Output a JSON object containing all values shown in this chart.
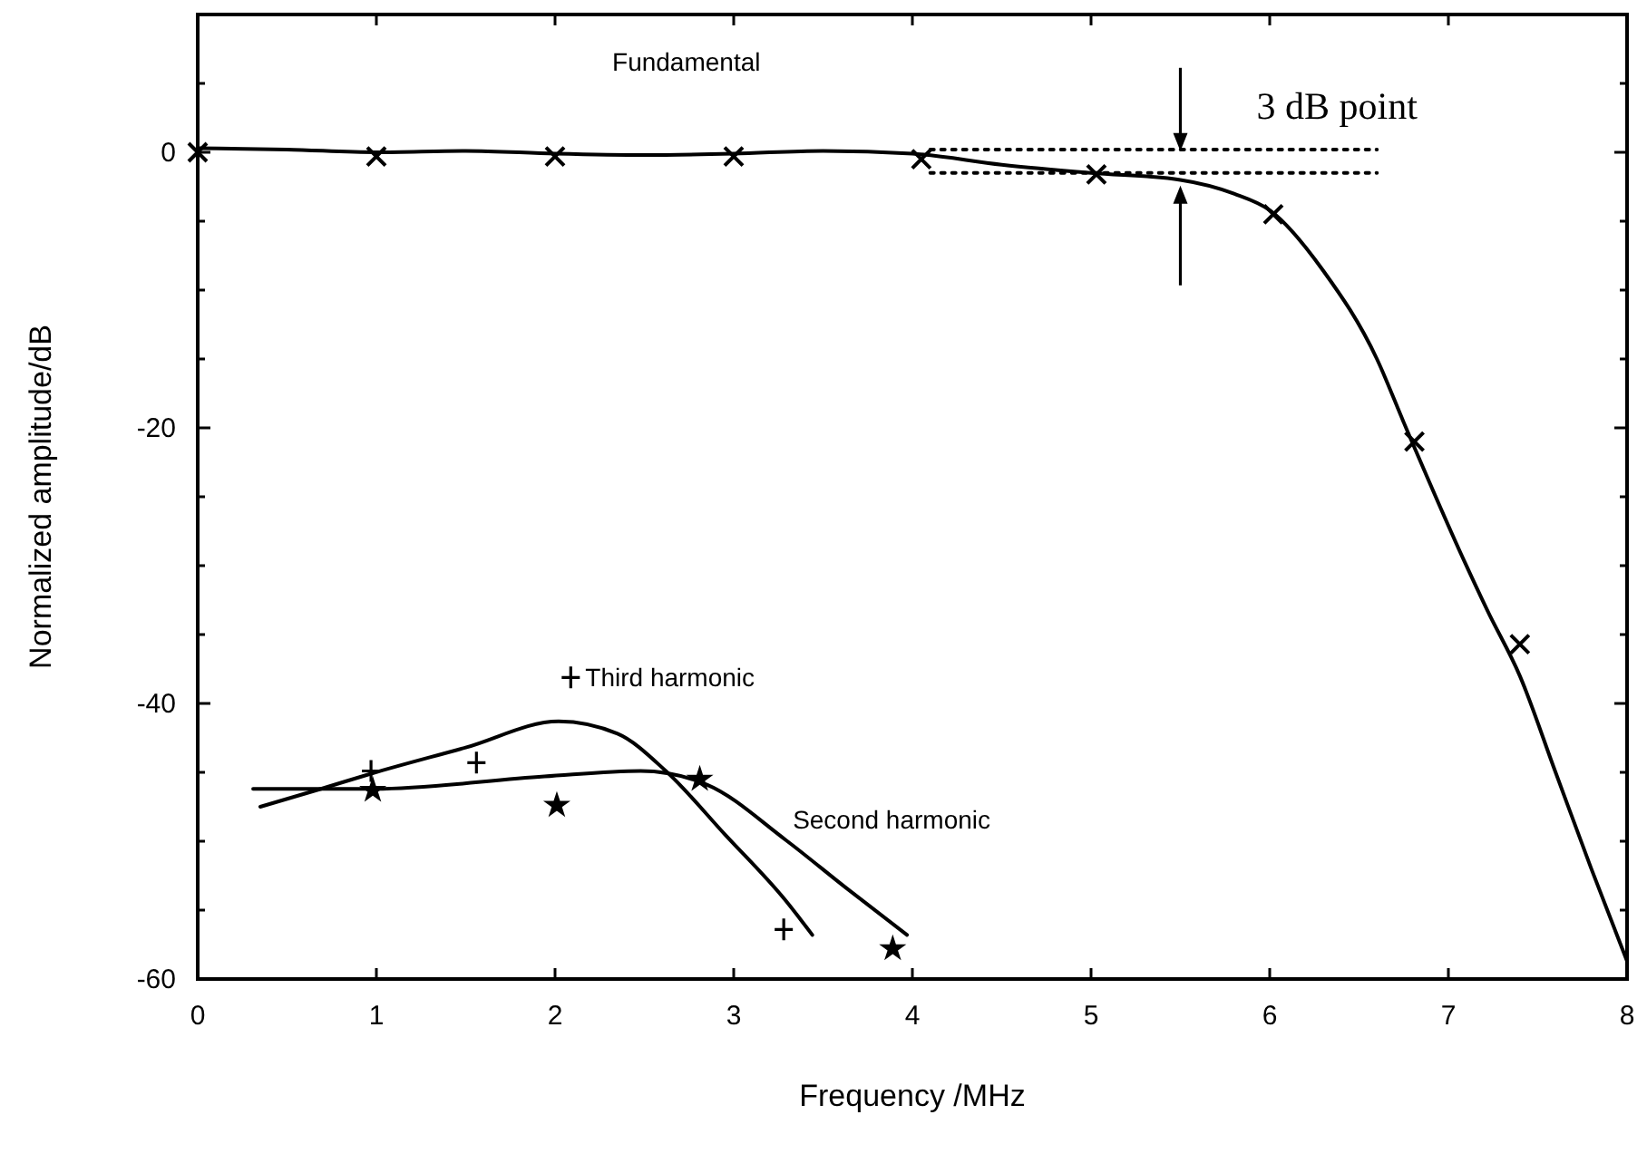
{
  "chart_data": {
    "type": "line",
    "xlabel": "Frequency /MHz",
    "ylabel": "Normalized amplitude/dB",
    "xlim": [
      0,
      8
    ],
    "xticks": [
      0,
      1,
      2,
      3,
      4,
      5,
      6,
      7,
      8
    ],
    "ylim": [
      -60,
      10
    ],
    "yticks": [
      -60,
      {
        "value": -55,
        "label": null
      },
      {
        "value": -50,
        "label": null
      },
      {
        "value": -45,
        "label": null
      },
      -40,
      {
        "value": -35,
        "label": null
      },
      {
        "value": -30,
        "label": null
      },
      {
        "value": -25,
        "label": null
      },
      -20,
      {
        "value": -15,
        "label": null
      },
      {
        "value": -10,
        "label": null
      },
      {
        "value": -5,
        "label": null
      },
      0,
      {
        "value": 5,
        "label": null
      },
      {
        "value": 10,
        "label": null
      }
    ],
    "grid": false,
    "legend": "bottom left",
    "series": [
      {
        "type": "line",
        "marker": "none",
        "color": "#000000",
        "x": [
          0,
          0.5,
          1,
          1.5,
          2,
          2.5,
          3,
          3.5,
          4,
          4.5,
          5,
          5.5,
          5.8,
          6,
          6.3,
          6.6,
          6.75,
          7.09,
          7.22,
          7.4,
          7.6,
          7.8,
          8
        ],
        "values": [
          0.3,
          0.2,
          0,
          0.1,
          -0.1,
          -0.2,
          -0.1,
          0.1,
          -0.1,
          -0.9,
          -1.5,
          -2,
          -3,
          -4.2,
          -8.6,
          -15,
          -19.6,
          -29.7,
          -33.3,
          -38,
          -45,
          -52,
          -58.7
        ]
      },
      {
        "type": "scatter",
        "marker": "cross",
        "name": "Fundamental",
        "color": "#000000",
        "x": [
          0,
          1,
          2,
          3,
          4.05,
          5.03,
          6.02,
          6.81,
          7.4
        ],
        "values": [
          0,
          -0.3,
          -0.3,
          -0.3,
          -0.5,
          -1.6,
          -4.5,
          -21,
          -35.7
        ]
      },
      {
        "type": "line",
        "marker": "none",
        "color": "#000000",
        "x": [
          0.35,
          0.69,
          0.97,
          1.5,
          2.02,
          2.35,
          2.62,
          2.95,
          3.29,
          3.44
        ],
        "values": [
          -47.5,
          -46.2,
          -45.1,
          -43.2,
          -41.3,
          -42.2,
          -44.9,
          -49.5,
          -54.3,
          -56.8
        ]
      },
      {
        "type": "scatter",
        "marker": "plus",
        "name": "Third harmonic",
        "color": "#000000",
        "x": [
          0.97,
          1.56,
          3.28
        ],
        "values": [
          -44.9,
          -44.3,
          -56.4
        ]
      },
      {
        "type": "line",
        "marker": "none",
        "name": "Second harmonic",
        "color": "#000000",
        "x": [
          0.31,
          0.99,
          1.94,
          2.48,
          2.85,
          3.29,
          3.63,
          3.97
        ],
        "values": [
          -46.2,
          -46.2,
          -45.3,
          -44.9,
          -45.9,
          -49.9,
          -53.4,
          -56.8
        ]
      },
      {
        "type": "scatter",
        "marker": "star",
        "color": "#000000",
        "x": [
          0.98,
          2.01,
          2.81,
          3.89
        ],
        "values": [
          -46.3,
          -47.4,
          -45.5,
          -57.8
        ]
      },
      {
        "type": "line",
        "marker": "none",
        "line_style": "dotted",
        "color": "#000000",
        "x": [
          4.1,
          6.6
        ],
        "values": [
          0.2,
          0.2
        ]
      },
      {
        "type": "line",
        "marker": "none",
        "line_style": "dotted",
        "color": "#000000",
        "x": [
          4.1,
          6.6
        ],
        "values": [
          -1.5,
          -1.5
        ]
      }
    ],
    "annotations": [
      {
        "text": "3 dB point",
        "x": 5.5,
        "y": -1.5
      }
    ]
  }
}
